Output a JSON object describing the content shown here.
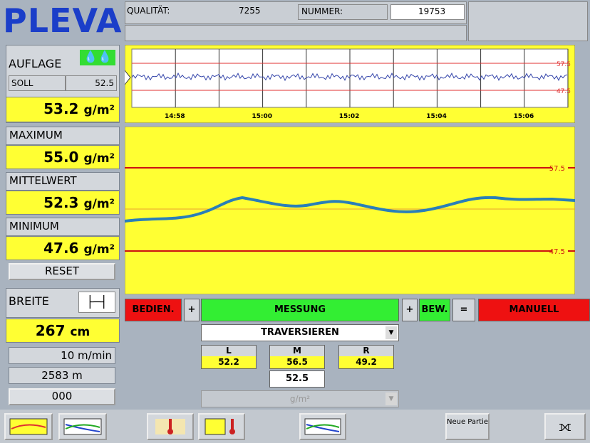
{
  "header": {
    "logo": "PLEVA",
    "qualitaet_label": "QUALITÄT:",
    "qualitaet_value": "7255",
    "nummer_label": "NUMMER:",
    "nummer_value": "19753"
  },
  "left": {
    "auflage": {
      "label": "AUFLAGE",
      "soll_label": "SOLL",
      "soll_value": "52.5",
      "value": "53.2",
      "unit": "g/m²"
    },
    "maximum": {
      "label": "MAXIMUM",
      "value": "55.0",
      "unit": "g/m²"
    },
    "mittelwert": {
      "label": "MITTELWERT",
      "value": "52.3",
      "unit": "g/m²"
    },
    "minimum": {
      "label": "MINIMUM",
      "value": "47.6",
      "unit": "g/m²"
    },
    "reset": "RESET",
    "breite": {
      "label": "BREITE",
      "value": "267",
      "unit": "cm"
    },
    "speed": {
      "value": "10",
      "unit": "m/min"
    },
    "length": {
      "value": "2583",
      "unit": "m"
    },
    "counter": "000"
  },
  "trend": {
    "times": [
      "14:58",
      "15:00",
      "15:02",
      "15:04",
      "15:06"
    ],
    "upper": "57.5",
    "lower": "47.5"
  },
  "profile": {
    "upper": "57.5",
    "lower": "47.5"
  },
  "status": {
    "bedien": "BEDIEN.",
    "plus1": "+",
    "messung": "MESSUNG",
    "plus2": "+",
    "bew": "BEW.",
    "equals": "=",
    "manuell": "MANUELL"
  },
  "traverse": {
    "mode": "TRAVERSIEREN",
    "zones": [
      {
        "label": "L",
        "value": "52.2"
      },
      {
        "label": "M",
        "value": "56.5"
      },
      {
        "label": "R",
        "value": "49.2"
      }
    ],
    "target": "52.5",
    "unit": "g/m²"
  },
  "toolbar": {
    "neue_partie": "Neue Partie"
  }
}
